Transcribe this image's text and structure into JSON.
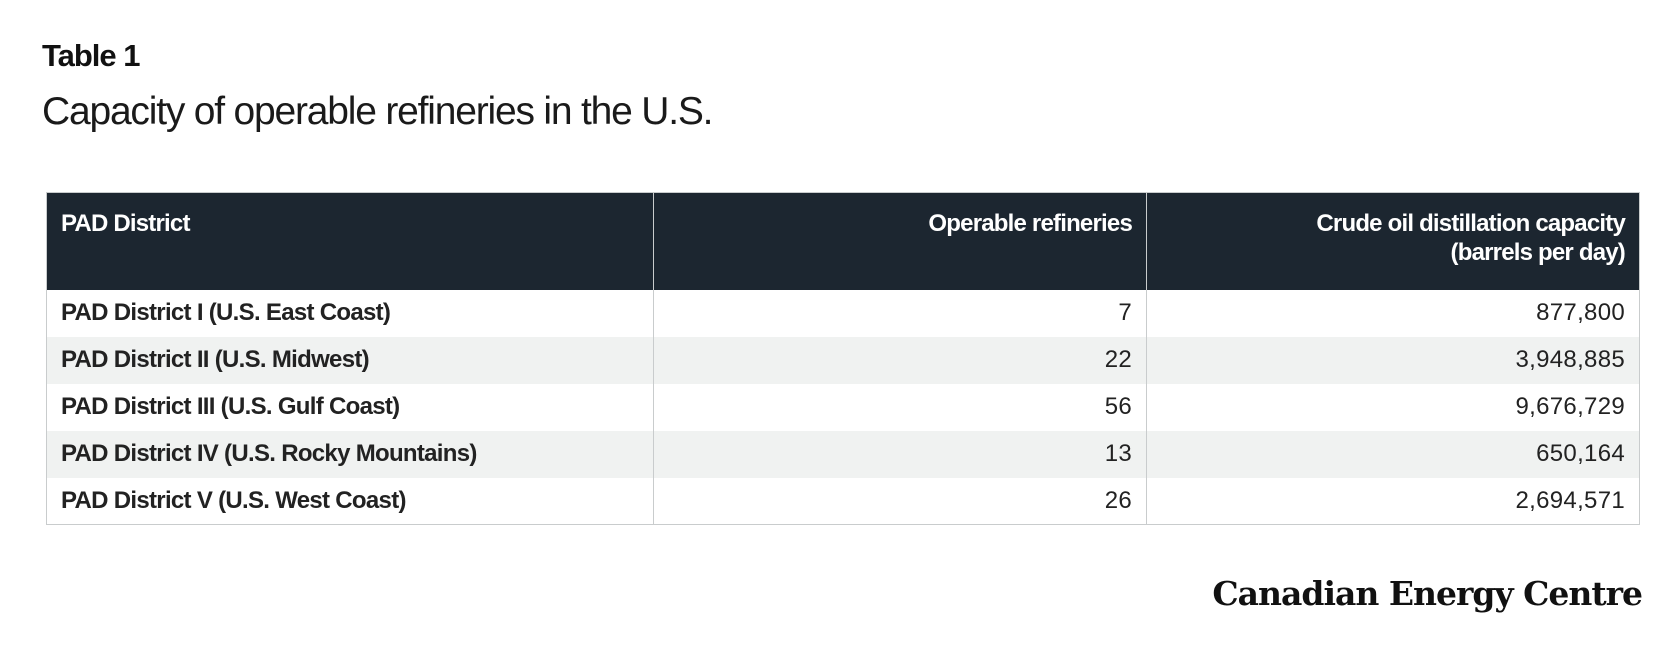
{
  "table_label": "Table 1",
  "table_title": "Capacity of operable refineries in the U.S.",
  "table": {
    "headers": {
      "district": "PAD District",
      "refineries": "Operable refineries",
      "capacity_line1": "Crude oil distillation capacity",
      "capacity_line2": "(barrels per  day)"
    },
    "rows": [
      {
        "district": "PAD District I (U.S. East Coast)",
        "refineries": "7",
        "capacity": "877,800"
      },
      {
        "district": "PAD District II (U.S. Midwest)",
        "refineries": "22",
        "capacity": "3,948,885"
      },
      {
        "district": "PAD District III (U.S. Gulf Coast)",
        "refineries": "56",
        "capacity": "9,676,729"
      },
      {
        "district": "PAD District IV (U.S. Rocky Mountains)",
        "refineries": "13",
        "capacity": "650,164"
      },
      {
        "district": "PAD District V (U.S. West Coast)",
        "refineries": "26",
        "capacity": "2,694,571"
      }
    ]
  },
  "footer": {
    "brand": "Canadian Energy Centre"
  },
  "colors": {
    "header_bg": "#1c2630",
    "row_alt_bg": "#f0f2f1",
    "border": "#c9cccd"
  }
}
